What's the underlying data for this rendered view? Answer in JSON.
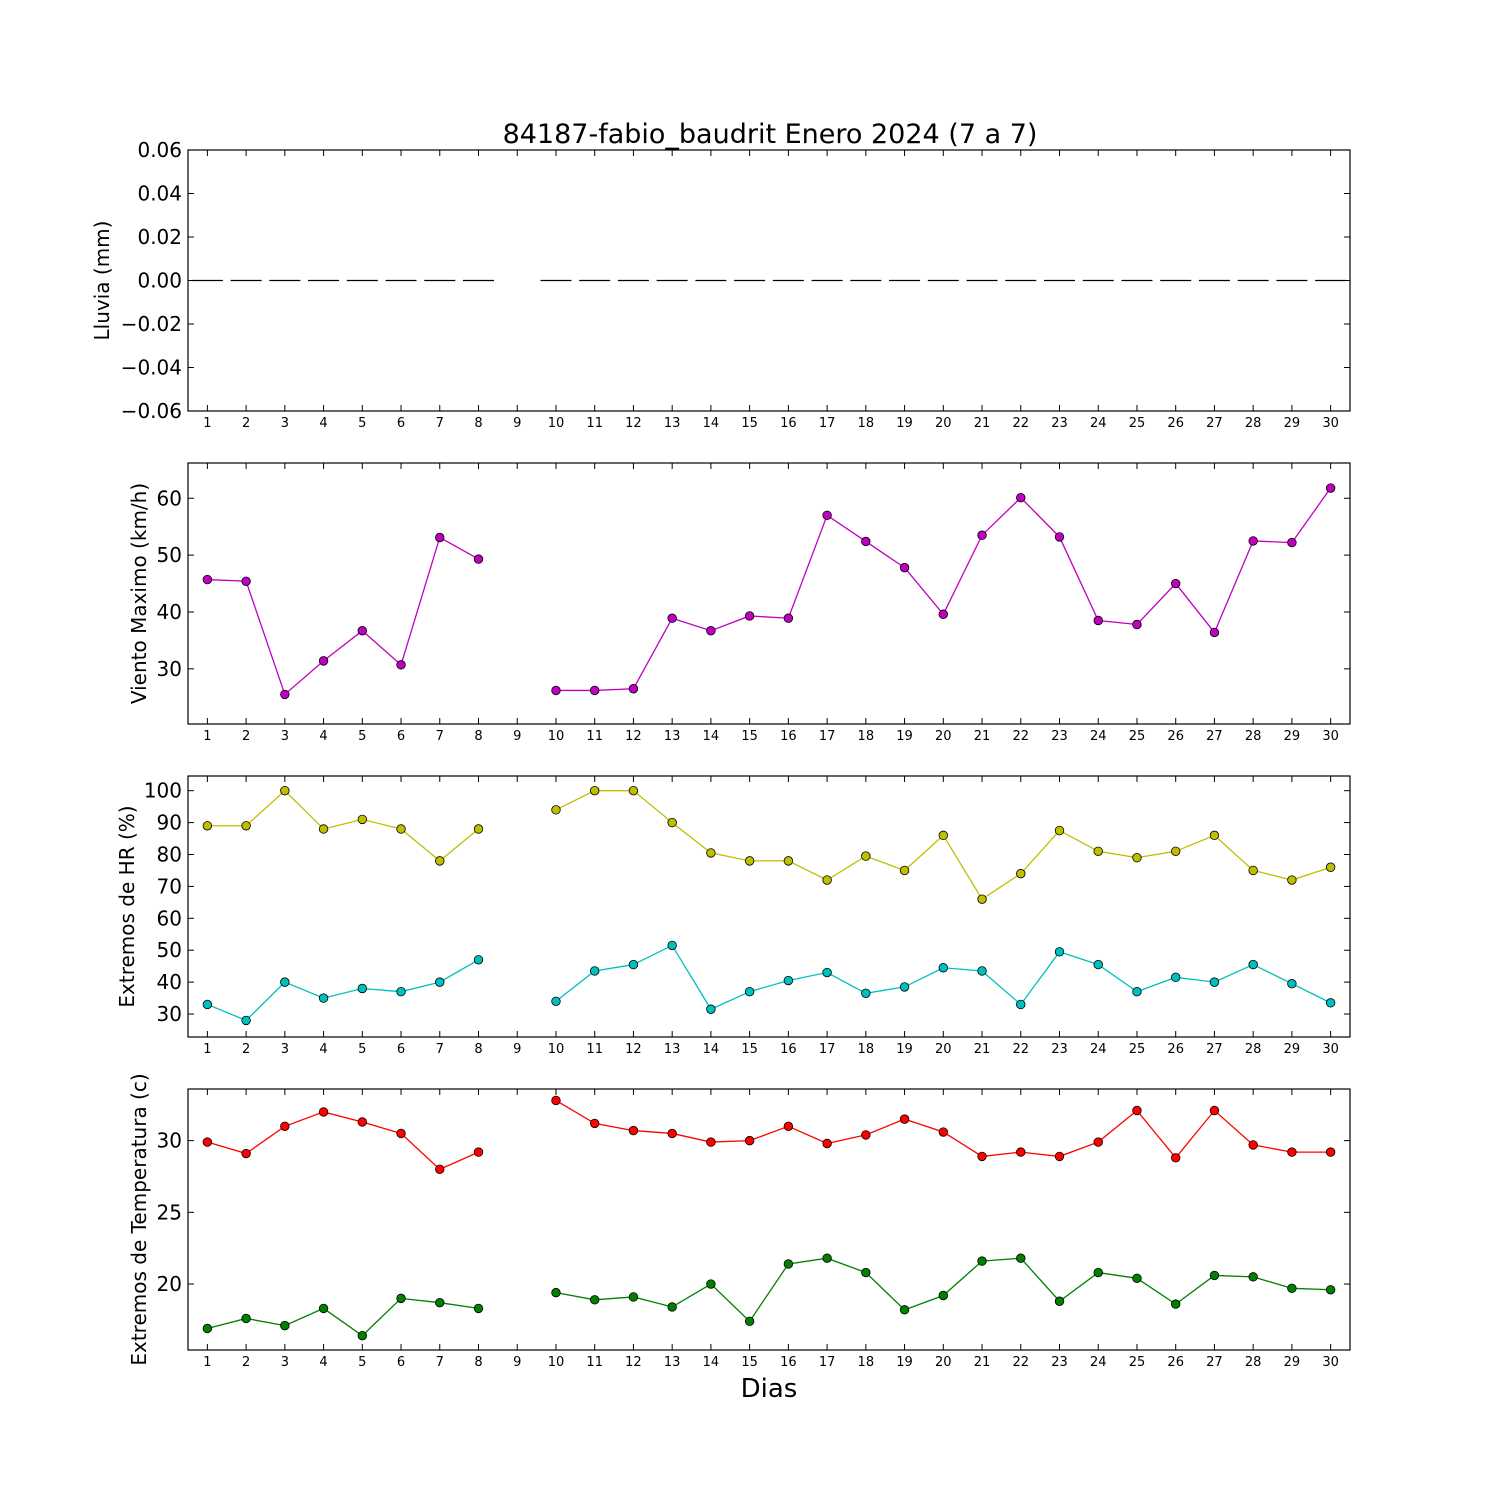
{
  "figure": {
    "title": "84187-fabio_baudrit Enero 2024  (7 a 7)",
    "xlabel": "Dias"
  },
  "chart_data": [
    {
      "type": "line",
      "ylabel": "Lluvia (mm)",
      "ylim": [
        -0.06,
        0.06
      ],
      "yticks": [
        0.06,
        0.04,
        0.02,
        0.0,
        -0.02,
        -0.04,
        -0.06
      ],
      "ytick_labels": [
        "0.06",
        "0.04",
        "0.02",
        "0.00",
        "−0.02",
        "−0.04",
        "−0.06"
      ],
      "x": [
        1,
        2,
        3,
        4,
        5,
        6,
        7,
        8,
        9,
        10,
        11,
        12,
        13,
        14,
        15,
        16,
        17,
        18,
        19,
        20,
        21,
        22,
        23,
        24,
        25,
        26,
        27,
        28,
        29,
        30
      ],
      "series": [
        {
          "color": "#000000",
          "style": "bar-dash",
          "values": [
            0,
            0,
            0,
            0,
            0,
            0,
            0,
            0,
            null,
            0,
            0,
            0,
            0,
            0,
            0,
            0,
            0,
            0,
            0,
            0,
            0,
            0,
            0,
            0,
            0,
            0,
            0,
            0,
            0,
            0
          ]
        }
      ]
    },
    {
      "type": "line",
      "ylabel": "Viento Maximo (km/h)",
      "ylim": [
        20.3,
        66.2
      ],
      "yticks": [
        30,
        40,
        50,
        60
      ],
      "ytick_labels": [
        "30",
        "40",
        "50",
        "60"
      ],
      "x": [
        1,
        2,
        3,
        4,
        5,
        6,
        7,
        8,
        9,
        10,
        11,
        12,
        13,
        14,
        15,
        16,
        17,
        18,
        19,
        20,
        21,
        22,
        23,
        24,
        25,
        26,
        27,
        28,
        29,
        30
      ],
      "series": [
        {
          "color": "#bf00bf",
          "style": "line-marker",
          "values": [
            45.7,
            45.4,
            25.5,
            31.4,
            36.7,
            30.7,
            53.1,
            49.3,
            null,
            26.2,
            26.2,
            26.5,
            38.9,
            36.7,
            39.3,
            38.9,
            57.0,
            52.4,
            47.8,
            39.6,
            53.5,
            60.1,
            53.2,
            38.5,
            37.8,
            45.0,
            36.4,
            52.5,
            52.2,
            61.8
          ]
        }
      ]
    },
    {
      "type": "line",
      "ylabel": "Extremos de HR (%)",
      "ylim": [
        22.8,
        104.6
      ],
      "yticks": [
        30,
        40,
        50,
        60,
        70,
        80,
        90,
        100
      ],
      "ytick_labels": [
        "30",
        "40",
        "50",
        "60",
        "70",
        "80",
        "90",
        "100"
      ],
      "x": [
        1,
        2,
        3,
        4,
        5,
        6,
        7,
        8,
        9,
        10,
        11,
        12,
        13,
        14,
        15,
        16,
        17,
        18,
        19,
        20,
        21,
        22,
        23,
        24,
        25,
        26,
        27,
        28,
        29,
        30
      ],
      "series": [
        {
          "color": "#bfbf00",
          "style": "line-marker",
          "values": [
            89,
            89,
            100,
            88,
            91,
            88,
            78,
            88,
            null,
            94,
            100,
            100,
            90,
            80.5,
            78,
            78,
            72,
            79.5,
            75,
            86,
            66,
            74,
            87.5,
            81,
            79,
            81,
            86,
            75,
            72,
            76
          ]
        },
        {
          "color": "#00bfbf",
          "style": "line-marker",
          "values": [
            33,
            28,
            40,
            35,
            38,
            37,
            40,
            47,
            null,
            34,
            43.5,
            45.5,
            51.5,
            31.5,
            37,
            40.5,
            43,
            36.5,
            38.5,
            44.5,
            43.5,
            33,
            49.5,
            45.5,
            37,
            41.5,
            40,
            45.5,
            39.5,
            33.5
          ]
        }
      ]
    },
    {
      "type": "line",
      "ylabel": "Extremos de Temperatura (c)",
      "ylim": [
        15.4,
        33.6
      ],
      "yticks": [
        20,
        25,
        30
      ],
      "ytick_labels": [
        "20",
        "25",
        "30"
      ],
      "x": [
        1,
        2,
        3,
        4,
        5,
        6,
        7,
        8,
        9,
        10,
        11,
        12,
        13,
        14,
        15,
        16,
        17,
        18,
        19,
        20,
        21,
        22,
        23,
        24,
        25,
        26,
        27,
        28,
        29,
        30
      ],
      "series": [
        {
          "color": "#ff0000",
          "style": "line-marker",
          "values": [
            29.9,
            29.1,
            31.0,
            32.0,
            31.3,
            30.5,
            28.0,
            29.2,
            null,
            32.8,
            31.2,
            30.7,
            30.5,
            29.9,
            30.0,
            31.0,
            29.8,
            30.4,
            31.5,
            30.6,
            28.9,
            29.2,
            28.9,
            29.9,
            32.1,
            28.8,
            32.1,
            29.7,
            29.2,
            29.2
          ]
        },
        {
          "color": "#007f00",
          "style": "line-marker",
          "values": [
            16.9,
            17.6,
            17.1,
            18.3,
            16.4,
            19.0,
            18.7,
            18.3,
            null,
            19.4,
            18.9,
            19.1,
            18.4,
            20.0,
            17.4,
            21.4,
            21.8,
            20.8,
            18.2,
            19.2,
            21.6,
            21.8,
            18.8,
            20.8,
            20.4,
            18.6,
            20.6,
            20.5,
            19.7,
            19.6
          ]
        }
      ]
    }
  ]
}
